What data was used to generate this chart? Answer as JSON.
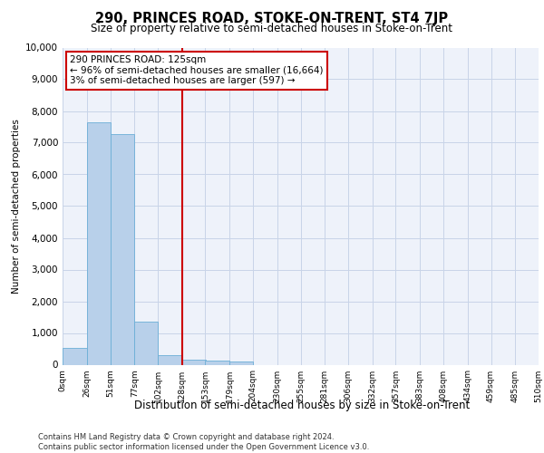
{
  "title": "290, PRINCES ROAD, STOKE-ON-TRENT, ST4 7JP",
  "subtitle": "Size of property relative to semi-detached houses in Stoke-on-Trent",
  "xlabel": "Distribution of semi-detached houses by size in Stoke-on-Trent",
  "ylabel": "Number of semi-detached properties",
  "footer_line1": "Contains HM Land Registry data © Crown copyright and database right 2024.",
  "footer_line2": "Contains public sector information licensed under the Open Government Licence v3.0.",
  "annotation_title": "290 PRINCES ROAD: 125sqm",
  "annotation_line1": "← 96% of semi-detached houses are smaller (16,664)",
  "annotation_line2": "3% of semi-detached houses are larger (597) →",
  "property_line_x": 128,
  "bar_edges": [
    0,
    26,
    51,
    77,
    102,
    128,
    153,
    179,
    204,
    230,
    255,
    281,
    306,
    332,
    357,
    383,
    408,
    434,
    459,
    485,
    510
  ],
  "bar_heights": [
    530,
    7650,
    7280,
    1360,
    310,
    160,
    120,
    90,
    0,
    0,
    0,
    0,
    0,
    0,
    0,
    0,
    0,
    0,
    0,
    0
  ],
  "bar_color": "#b8d0ea",
  "bar_edge_color": "#6baed6",
  "grid_color": "#c8d4e8",
  "background_color": "#eef2fa",
  "red_line_color": "#cc0000",
  "annotation_box_color": "#ffffff",
  "annotation_box_edge": "#cc0000",
  "ylim": [
    0,
    10000
  ],
  "yticks": [
    0,
    1000,
    2000,
    3000,
    4000,
    5000,
    6000,
    7000,
    8000,
    9000,
    10000
  ],
  "title_fontsize": 10.5,
  "subtitle_fontsize": 8.5,
  "ylabel_fontsize": 7.5,
  "ytick_fontsize": 7.5,
  "xtick_fontsize": 6.5,
  "annotation_fontsize": 7.5,
  "xlabel_fontsize": 8.5,
  "footer_fontsize": 6.0
}
